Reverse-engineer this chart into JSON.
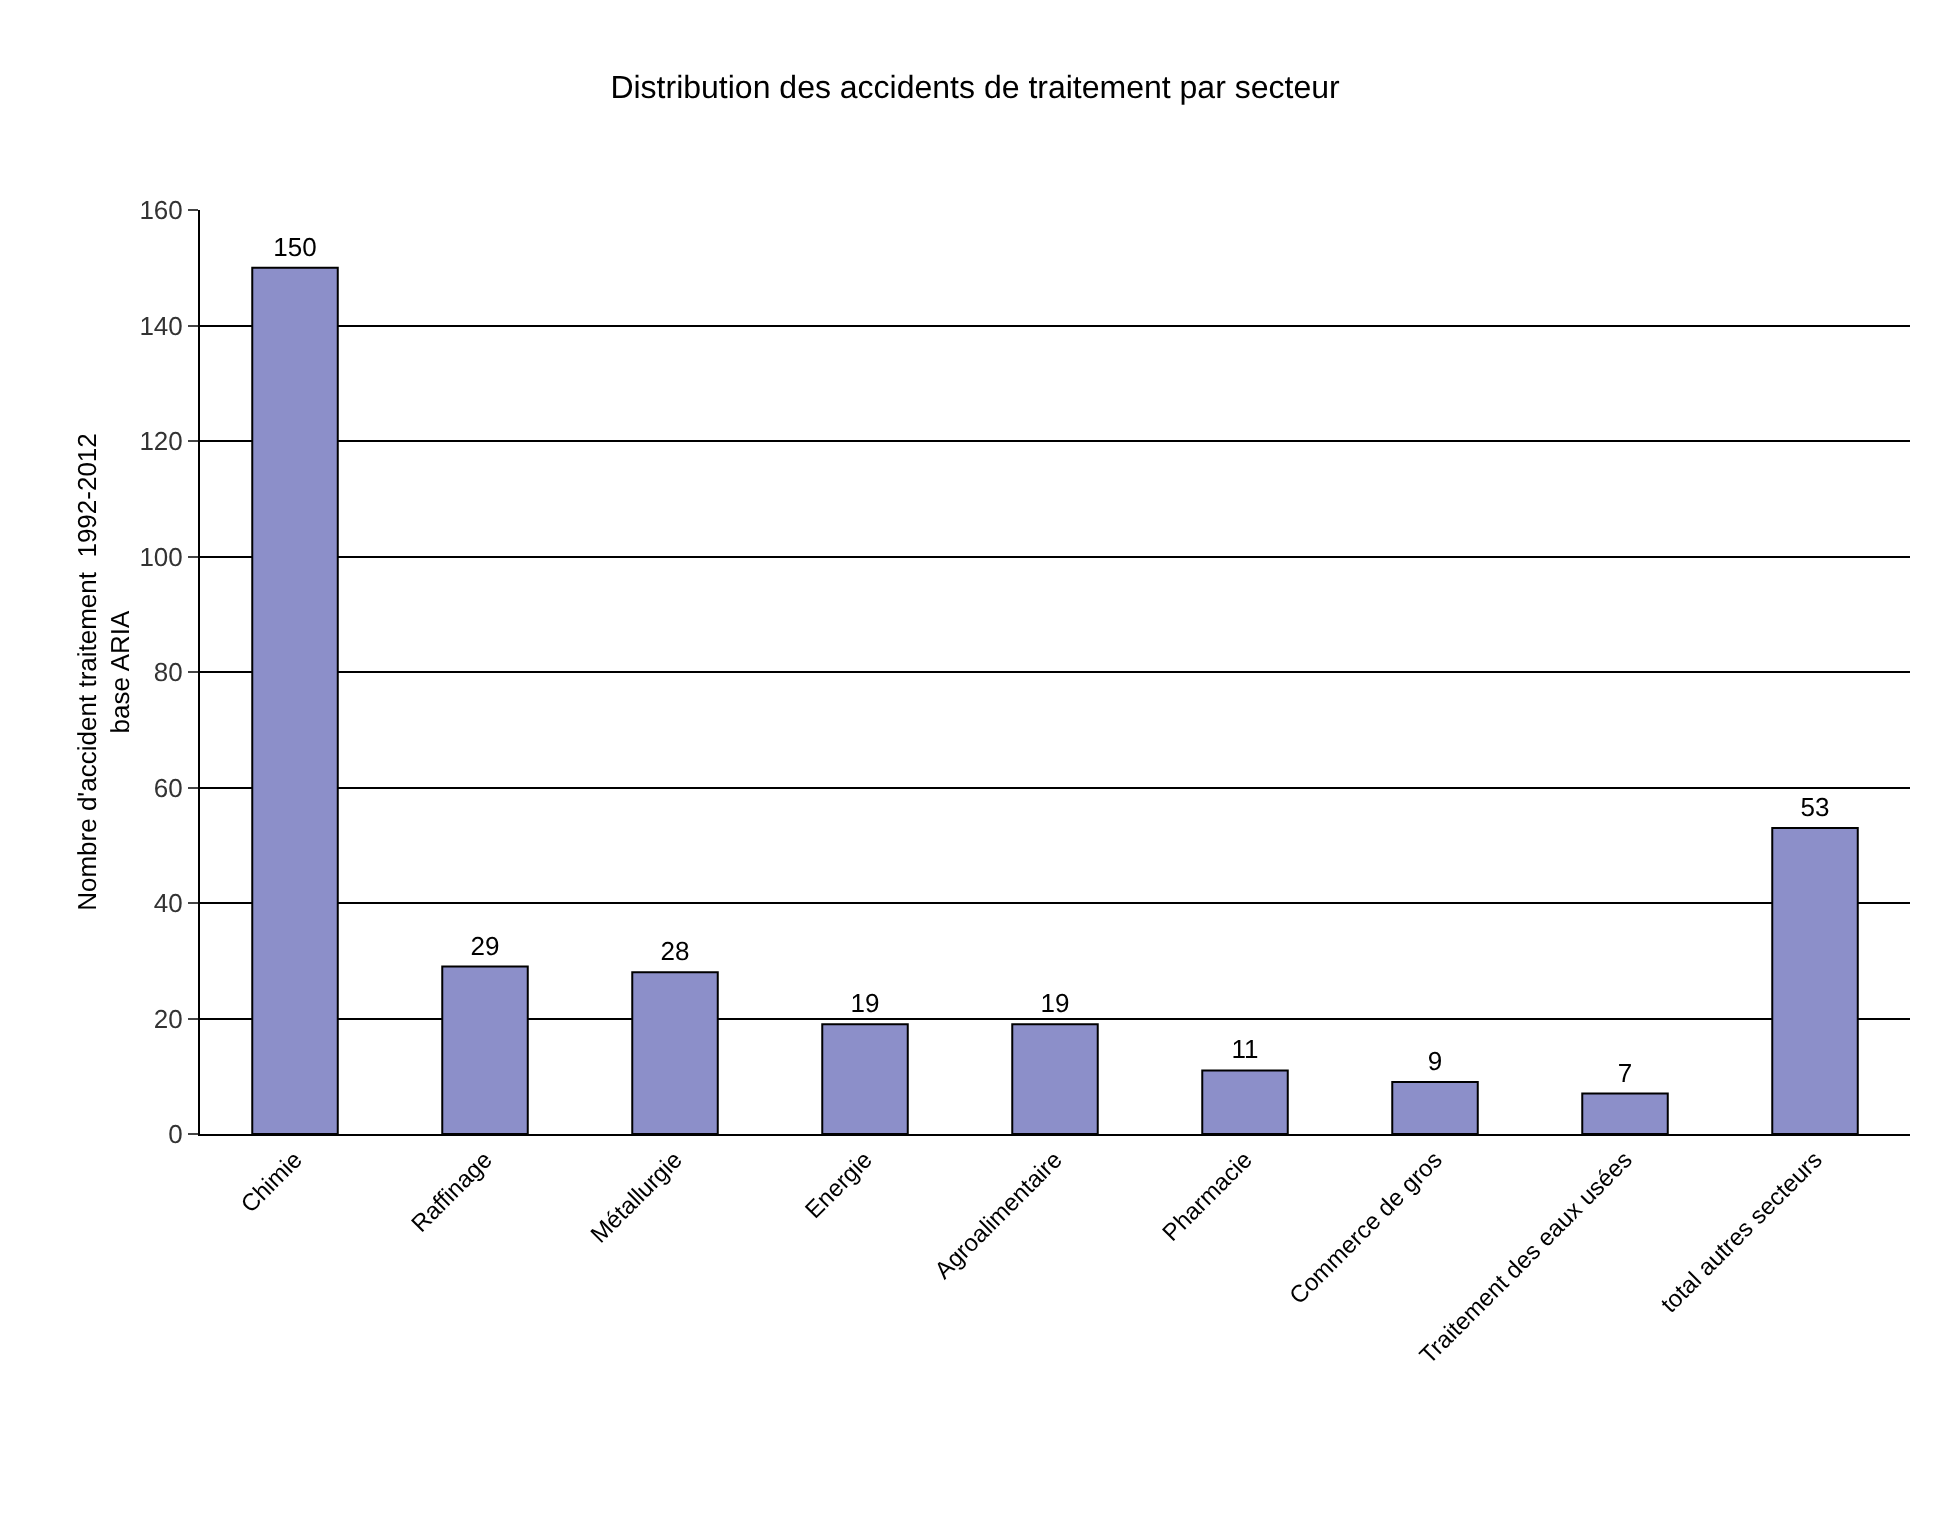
{
  "chart_data": {
    "type": "bar",
    "title": "Distribution des accidents de traitement par secteur",
    "ylabel": "Nombre d'accident traitement  1992-2012\nbase ARIA",
    "categories": [
      "Chimie",
      "Raffinage",
      "Métallurgie",
      "Energie",
      "Agroalimentaire",
      "Pharmacie",
      "Commerce de gros",
      "Traitement des eaux usées",
      "total autres secteurs"
    ],
    "values": [
      150,
      29,
      28,
      19,
      19,
      11,
      9,
      7,
      53
    ],
    "color": "#8c8fc9",
    "ylim": [
      0,
      160
    ],
    "yticks": [
      0,
      20,
      40,
      60,
      80,
      100,
      120,
      140,
      160
    ],
    "grid": "y",
    "data_labels": true
  }
}
